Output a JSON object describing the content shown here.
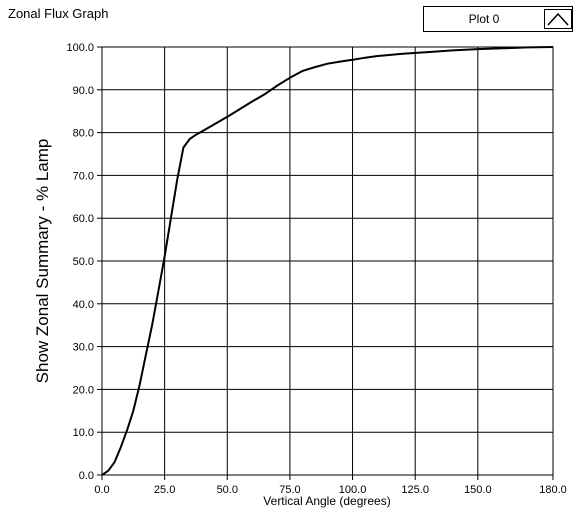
{
  "window": {
    "title": "Zonal Flux Graph"
  },
  "legend": {
    "label": "Plot 0",
    "icon": "line-plot-icon"
  },
  "chart_data": {
    "type": "line",
    "title": "",
    "xlabel": "Vertical Angle (degrees)",
    "ylabel": "Show Zonal Summary - % Lamp",
    "xlim": [
      0,
      180
    ],
    "ylim": [
      0,
      100
    ],
    "grid": true,
    "legend_position": "top-right",
    "x_ticks": [
      "0.0",
      "25.0",
      "50.0",
      "75.0",
      "100.0",
      "125.0",
      "150.0",
      "180.0"
    ],
    "y_ticks": [
      "0.0",
      "10.0",
      "20.0",
      "30.0",
      "40.0",
      "50.0",
      "60.0",
      "70.0",
      "80.0",
      "90.0",
      "100.0"
    ],
    "series": [
      {
        "name": "Plot 0",
        "color": "#000000",
        "x": [
          0,
          2.5,
          5,
          7.5,
          10,
          12.5,
          15,
          17.5,
          20,
          22.5,
          25,
          27.5,
          30,
          32.5,
          35,
          37.5,
          40,
          45,
          50,
          55,
          60,
          65,
          70,
          75,
          80,
          85,
          90,
          95,
          100,
          105,
          110,
          120,
          130,
          140,
          150,
          160,
          170,
          180
        ],
        "y": [
          0,
          1,
          3,
          6.5,
          10.5,
          15,
          21,
          28,
          35,
          43,
          51,
          60,
          69,
          76.5,
          78.5,
          79.5,
          80.3,
          82,
          83.7,
          85.5,
          87.3,
          89,
          91,
          92.8,
          94.4,
          95.3,
          96.1,
          96.6,
          97,
          97.5,
          97.9,
          98.4,
          98.8,
          99.2,
          99.5,
          99.7,
          99.9,
          100
        ]
      }
    ]
  }
}
